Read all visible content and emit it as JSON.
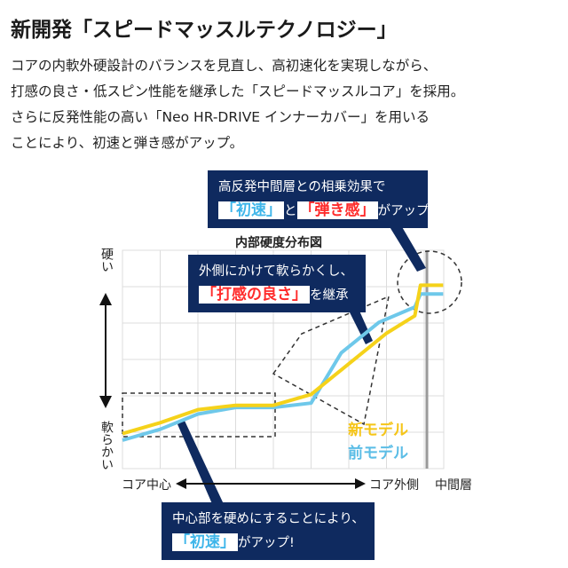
{
  "header": {
    "title": "新開発「スピードマッスルテクノロジー」"
  },
  "description": {
    "lines": [
      "コアの内軟外硬設計のバランスを見直し、高初速化を実現しながら、",
      "打感の良さ・低スピン性能を継承した「スピードマッスルコア」を採用。",
      "さらに反発性能の高い「Neo HR-DRIVE インナーカバー」を用いる",
      "ことにより、初速と弾き感がアップ。"
    ]
  },
  "callouts": {
    "top": {
      "line1": "高反発中間層との相乗効果で",
      "hl1": "「初速」",
      "mid": "と",
      "hl2": "「弾き感」",
      "tail": "がアップ。"
    },
    "middle": {
      "line1": "外側にかけて軟らかくし、",
      "hl1": "「打感の良さ」",
      "tail": "を継承"
    },
    "bottom": {
      "line1": "中心部を硬めにすることにより、",
      "hl1": "「初速」",
      "tail": "がアップ!"
    }
  },
  "colors": {
    "new_model": "#f5d21a",
    "old_model": "#6ec8ea",
    "callout_bg": "#0f2a5f",
    "highlight_blue": "#3fb6ea",
    "highlight_red": "#ff2b2b",
    "grid": "#dcdcdc",
    "divider": "#9a9a9a"
  },
  "chart_data": {
    "type": "line",
    "title": "内部硬度分布図",
    "ylabel_top": "硬い",
    "ylabel_bottom": "軟らかい",
    "xlabel_left": "コア中心",
    "xlabel_mid": "コア外側",
    "xlabel_right": "中間層",
    "grid": true,
    "legend_position": "bottom-right",
    "xlim": [
      0,
      8
    ],
    "ylim": [
      0,
      10
    ],
    "series": [
      {
        "name": "新モデル",
        "color": "#f5d21a",
        "points": [
          [
            0,
            1.6
          ],
          [
            1,
            2.1
          ],
          [
            2,
            2.7
          ],
          [
            3,
            2.9
          ],
          [
            4,
            2.9
          ],
          [
            5,
            3.4
          ],
          [
            6,
            4.8
          ],
          [
            7,
            6.2
          ],
          [
            7.75,
            7.0
          ],
          [
            7.9,
            8.4
          ],
          [
            8.5,
            8.4
          ]
        ]
      },
      {
        "name": "前モデル",
        "color": "#6ec8ea",
        "points": [
          [
            0,
            1.3
          ],
          [
            1,
            1.8
          ],
          [
            2,
            2.5
          ],
          [
            3,
            2.8
          ],
          [
            4,
            2.8
          ],
          [
            5,
            3.0
          ],
          [
            5.8,
            5.3
          ],
          [
            6.8,
            6.7
          ],
          [
            7.75,
            7.4
          ],
          [
            7.9,
            8.0
          ],
          [
            8.5,
            8.0
          ]
        ]
      }
    ]
  }
}
